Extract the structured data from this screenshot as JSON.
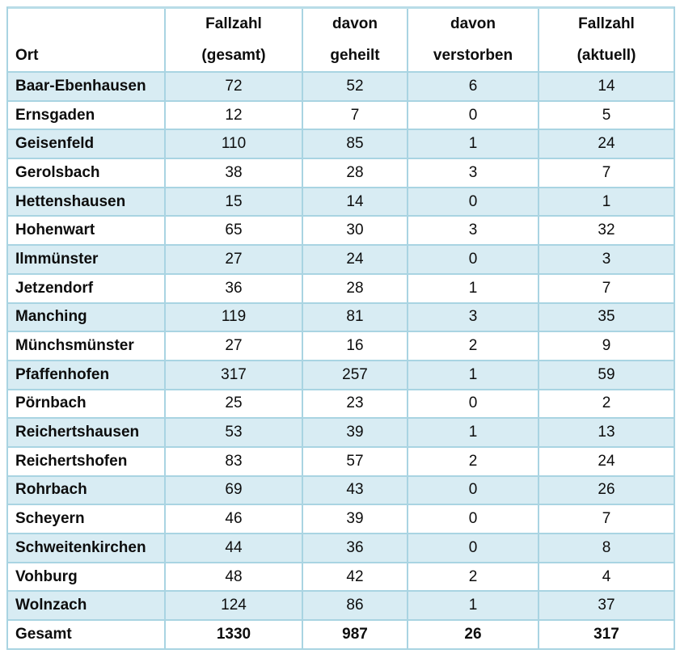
{
  "colors": {
    "row_alt_fill": "#d8ecf3",
    "cell_border": "#a9d4e2",
    "text": "#0d0d0d",
    "background": "#ffffff",
    "top_rule": "#bfe0ea"
  },
  "table": {
    "header": {
      "ort": "Ort",
      "cols": [
        {
          "line1": "Fallzahl",
          "line2": "(gesamt)"
        },
        {
          "line1": "davon",
          "line2": "geheilt"
        },
        {
          "line1": "davon",
          "line2": "verstorben"
        },
        {
          "line1": "Fallzahl",
          "line2": "(aktuell)"
        }
      ]
    },
    "rows": [
      {
        "ort": "Baar-Ebenhausen",
        "gesamt": "72",
        "geheilt": "52",
        "verstorben": "6",
        "aktuell": "14"
      },
      {
        "ort": "Ernsgaden",
        "gesamt": "12",
        "geheilt": "7",
        "verstorben": "0",
        "aktuell": "5"
      },
      {
        "ort": "Geisenfeld",
        "gesamt": "110",
        "geheilt": "85",
        "verstorben": "1",
        "aktuell": "24"
      },
      {
        "ort": "Gerolsbach",
        "gesamt": "38",
        "geheilt": "28",
        "verstorben": "3",
        "aktuell": "7"
      },
      {
        "ort": "Hettenshausen",
        "gesamt": "15",
        "geheilt": "14",
        "verstorben": "0",
        "aktuell": "1"
      },
      {
        "ort": "Hohenwart",
        "gesamt": "65",
        "geheilt": "30",
        "verstorben": "3",
        "aktuell": "32"
      },
      {
        "ort": "Ilmmünster",
        "gesamt": "27",
        "geheilt": "24",
        "verstorben": "0",
        "aktuell": "3"
      },
      {
        "ort": "Jetzendorf",
        "gesamt": "36",
        "geheilt": "28",
        "verstorben": "1",
        "aktuell": "7"
      },
      {
        "ort": "Manching",
        "gesamt": "119",
        "geheilt": "81",
        "verstorben": "3",
        "aktuell": "35"
      },
      {
        "ort": "Münchsmünster",
        "gesamt": "27",
        "geheilt": "16",
        "verstorben": "2",
        "aktuell": "9"
      },
      {
        "ort": "Pfaffenhofen",
        "gesamt": "317",
        "geheilt": "257",
        "verstorben": "1",
        "aktuell": "59"
      },
      {
        "ort": "Pörnbach",
        "gesamt": "25",
        "geheilt": "23",
        "verstorben": "0",
        "aktuell": "2"
      },
      {
        "ort": "Reichertshausen",
        "gesamt": "53",
        "geheilt": "39",
        "verstorben": "1",
        "aktuell": "13"
      },
      {
        "ort": "Reichertshofen",
        "gesamt": "83",
        "geheilt": "57",
        "verstorben": "2",
        "aktuell": "24"
      },
      {
        "ort": "Rohrbach",
        "gesamt": "69",
        "geheilt": "43",
        "verstorben": "0",
        "aktuell": "26"
      },
      {
        "ort": "Scheyern",
        "gesamt": "46",
        "geheilt": "39",
        "verstorben": "0",
        "aktuell": "7"
      },
      {
        "ort": "Schweitenkirchen",
        "gesamt": "44",
        "geheilt": "36",
        "verstorben": "0",
        "aktuell": "8"
      },
      {
        "ort": "Vohburg",
        "gesamt": "48",
        "geheilt": "42",
        "verstorben": "2",
        "aktuell": "4"
      },
      {
        "ort": "Wolnzach",
        "gesamt": "124",
        "geheilt": "86",
        "verstorben": "1",
        "aktuell": "37"
      }
    ],
    "total": {
      "ort": "Gesamt",
      "gesamt": "1330",
      "geheilt": "987",
      "verstorben": "26",
      "aktuell": "317"
    }
  }
}
